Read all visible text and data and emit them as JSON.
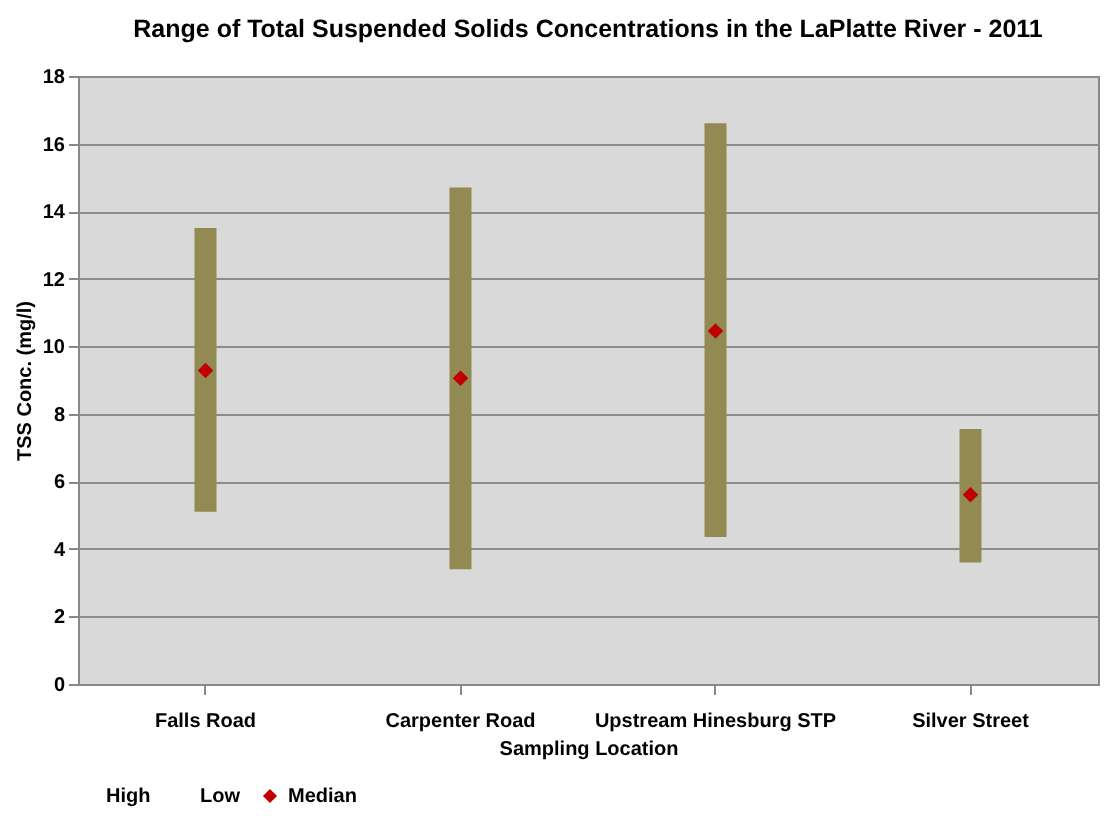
{
  "chart_data": {
    "type": "bar",
    "title": "Range of Total Suspended Solids Concentrations in the LaPlatte River - 2011",
    "xlabel": "Sampling Location",
    "ylabel": "TSS Conc. (mg/l)",
    "categories": [
      "Falls Road",
      "Carpenter Road",
      "Upstream Hinesburg STP",
      "Silver Street"
    ],
    "series": [
      {
        "type": "bar",
        "color": "#938953",
        "base": [
          5.1,
          3.4,
          4.35,
          3.6
        ],
        "values": [
          8.4,
          11.3,
          12.25,
          3.95
        ]
      },
      {
        "type": "scatter",
        "name": "Median",
        "color": "#c00000",
        "marker": "diamond",
        "values": [
          9.28,
          9.05,
          10.45,
          5.6
        ]
      }
    ],
    "annotations": [
      "High",
      "Low"
    ],
    "ylim": [
      0,
      18
    ],
    "yticks": [
      0,
      2,
      4,
      6,
      8,
      10,
      12,
      14,
      16,
      18
    ],
    "grid": "y",
    "legend": "bottom"
  }
}
